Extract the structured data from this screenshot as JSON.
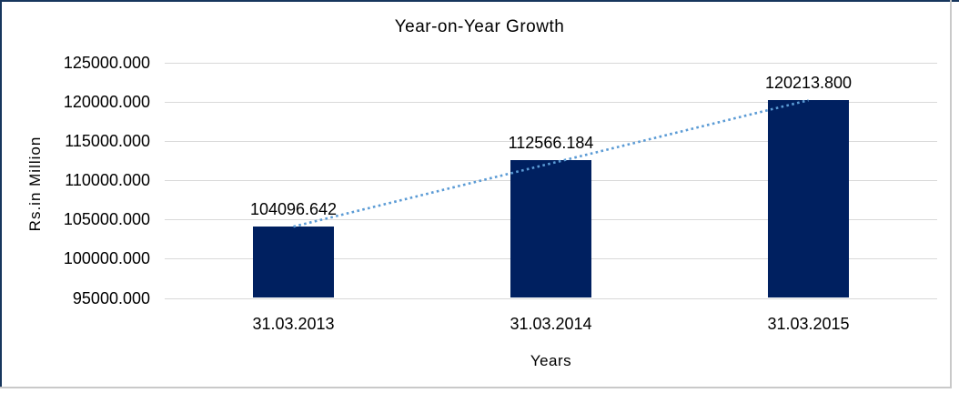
{
  "chart_data": {
    "type": "bar",
    "title": "Year-on-Year Growth",
    "xlabel": "Years",
    "ylabel": "Rs.in Million",
    "categories": [
      "31.03.2013",
      "31.03.2014",
      "31.03.2015"
    ],
    "values": [
      104096.642,
      112566.184,
      120213.8
    ],
    "data_labels": [
      "104096.642",
      "112566.184",
      "120213.800"
    ],
    "ylim": [
      95000,
      125000
    ],
    "y_ticks": [
      {
        "value": 125000,
        "label": "125000.000"
      },
      {
        "value": 120000,
        "label": "120000.000"
      },
      {
        "value": 115000,
        "label": "115000.000"
      },
      {
        "value": 110000,
        "label": "110000.000"
      },
      {
        "value": 105000,
        "label": "105000.000"
      },
      {
        "value": 100000,
        "label": "100000.000"
      },
      {
        "value": 95000,
        "label": "95000.000"
      }
    ],
    "grid": true,
    "legend": "none",
    "trendline": {
      "type": "linear",
      "style": "dotted",
      "from_index": 0,
      "to_index": 2
    },
    "colors": {
      "bar": "#002060",
      "trendline": "#5B9BD5",
      "gridline": "#D9D9D9",
      "text": "#000000",
      "frame_top_left": "#17365D",
      "frame_bottom_right": "#C9C9C9",
      "background": "#FFFFFF"
    }
  }
}
